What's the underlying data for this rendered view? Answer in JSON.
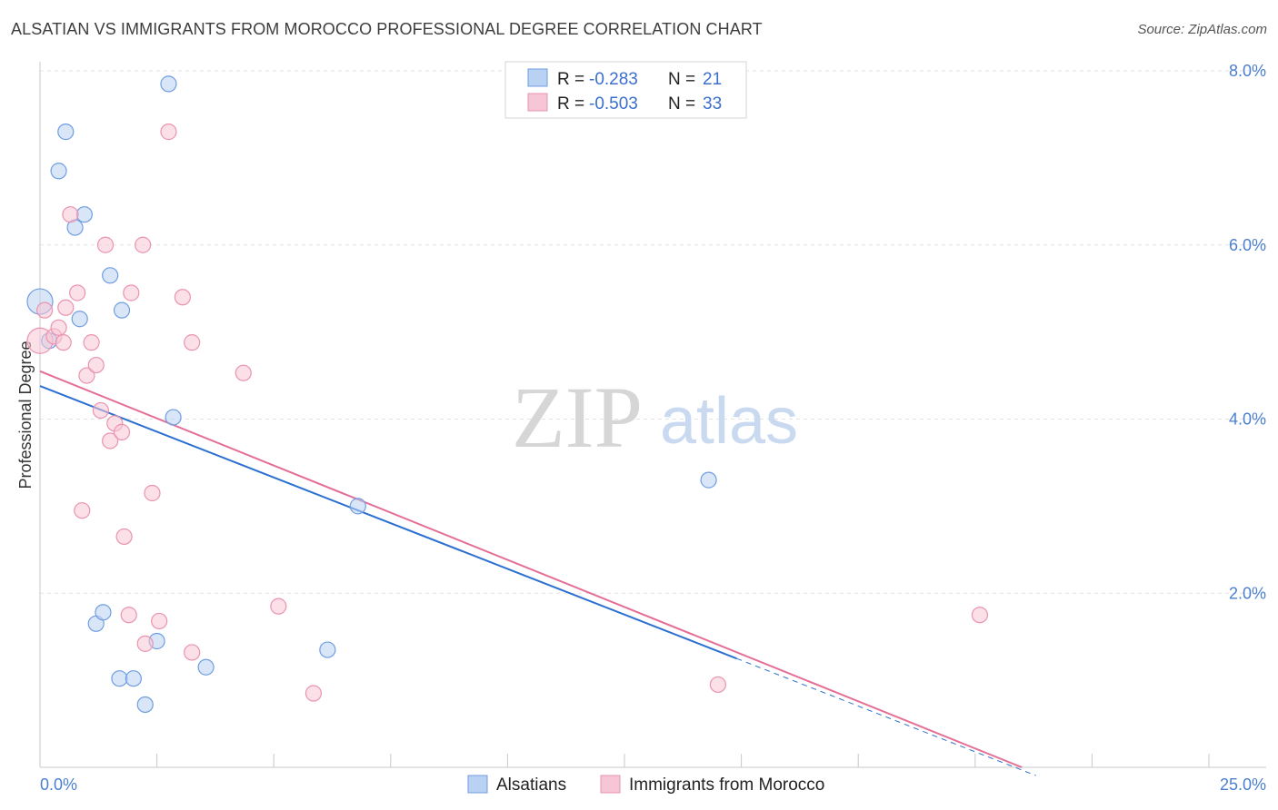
{
  "title": "ALSATIAN VS IMMIGRANTS FROM MOROCCO PROFESSIONAL DEGREE CORRELATION CHART",
  "source": "Source: ZipAtlas.com",
  "watermark": {
    "zip": "ZIP",
    "atlas": "atlas"
  },
  "chart_data": {
    "type": "scatter",
    "title": "ALSATIAN VS IMMIGRANTS FROM MOROCCO PROFESSIONAL DEGREE CORRELATION CHART",
    "xlabel": "",
    "ylabel": "Professional Degree",
    "xlim": [
      0,
      25
    ],
    "ylim": [
      0,
      8.0
    ],
    "x_tick_labels": [
      "0.0%",
      "25.0%"
    ],
    "y_ticks": [
      2.0,
      4.0,
      6.0,
      8.0
    ],
    "y_tick_labels": [
      "2.0%",
      "4.0%",
      "6.0%",
      "8.0%"
    ],
    "legend_position": "top-center",
    "series": [
      {
        "name": "Alsatians",
        "color": "#6f9ee0",
        "fill": "#b9d1f3",
        "line_color": "#2b6fd0",
        "R": "-0.283",
        "N": "21",
        "points": [
          [
            0.0,
            5.35
          ],
          [
            0.2,
            4.9
          ],
          [
            0.4,
            6.85
          ],
          [
            0.55,
            7.3
          ],
          [
            0.75,
            6.2
          ],
          [
            0.85,
            5.15
          ],
          [
            0.95,
            6.35
          ],
          [
            1.2,
            1.65
          ],
          [
            1.35,
            1.78
          ],
          [
            1.5,
            5.65
          ],
          [
            1.7,
            1.02
          ],
          [
            1.75,
            5.25
          ],
          [
            2.0,
            1.02
          ],
          [
            2.25,
            0.72
          ],
          [
            2.5,
            1.45
          ],
          [
            2.75,
            7.85
          ],
          [
            2.85,
            4.02
          ],
          [
            3.55,
            1.15
          ],
          [
            6.15,
            1.35
          ],
          [
            6.8,
            3.0
          ],
          [
            14.3,
            3.3
          ]
        ],
        "trend": {
          "x0": 0.0,
          "y0": 4.38,
          "x1": 14.9,
          "y1": 1.25,
          "dash_to_x": 21.3
        }
      },
      {
        "name": "Immigrants from Morocco",
        "color": "#ea93b0",
        "fill": "#f7c6d6",
        "line_color": "#e46e96",
        "R": "-0.503",
        "N": "33",
        "points": [
          [
            0.0,
            4.9
          ],
          [
            0.1,
            5.25
          ],
          [
            0.3,
            4.95
          ],
          [
            0.4,
            5.05
          ],
          [
            0.5,
            4.88
          ],
          [
            0.55,
            5.28
          ],
          [
            0.65,
            6.35
          ],
          [
            0.8,
            5.45
          ],
          [
            0.9,
            2.95
          ],
          [
            1.0,
            4.5
          ],
          [
            1.1,
            4.88
          ],
          [
            1.2,
            4.62
          ],
          [
            1.3,
            4.1
          ],
          [
            1.4,
            6.0
          ],
          [
            1.5,
            3.75
          ],
          [
            1.6,
            3.95
          ],
          [
            1.75,
            3.85
          ],
          [
            1.8,
            2.65
          ],
          [
            1.9,
            1.75
          ],
          [
            1.95,
            5.45
          ],
          [
            2.2,
            6.0
          ],
          [
            2.25,
            1.42
          ],
          [
            2.4,
            3.15
          ],
          [
            2.55,
            1.68
          ],
          [
            2.75,
            7.3
          ],
          [
            3.05,
            5.4
          ],
          [
            3.25,
            1.32
          ],
          [
            3.25,
            4.88
          ],
          [
            4.35,
            4.53
          ],
          [
            5.1,
            1.85
          ],
          [
            5.85,
            0.85
          ],
          [
            14.5,
            0.95
          ],
          [
            20.1,
            1.75
          ]
        ],
        "trend": {
          "x0": 0.0,
          "y0": 4.55,
          "x1": 21.0,
          "y1": 0.0
        }
      }
    ]
  }
}
